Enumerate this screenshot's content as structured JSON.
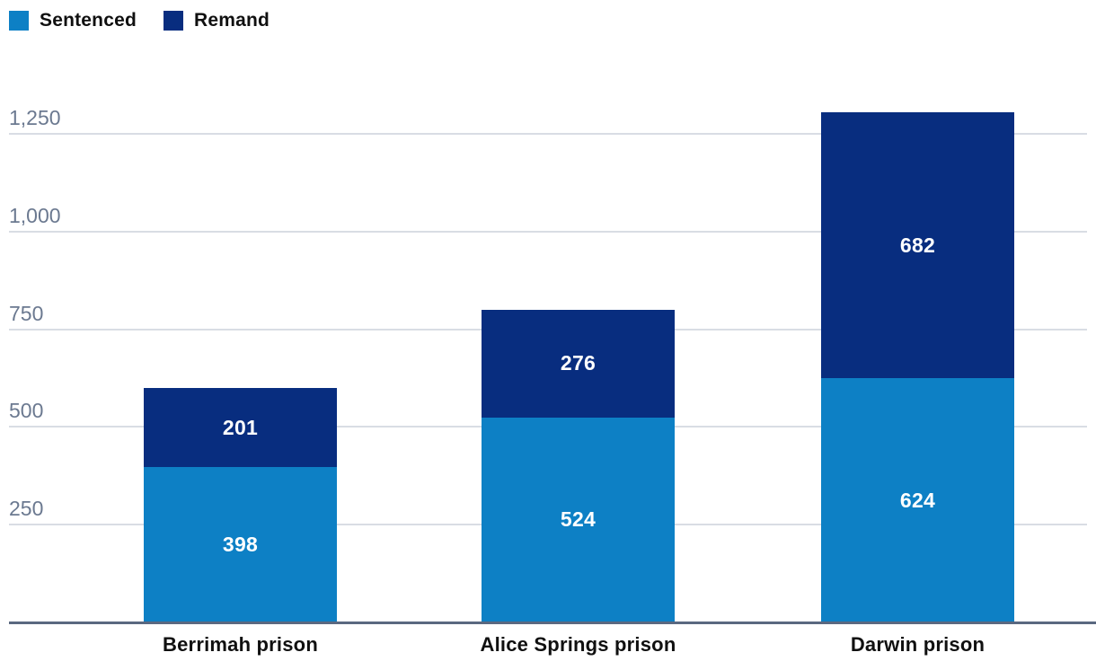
{
  "chart_data": {
    "type": "bar",
    "stacked": true,
    "title": "",
    "xlabel": "",
    "ylabel": "",
    "categories": [
      "Berrimah prison",
      "Alice Springs prison",
      "Darwin prison"
    ],
    "series": [
      {
        "name": "Sentenced",
        "color": "#0d80c5",
        "values": [
          398,
          524,
          624
        ]
      },
      {
        "name": "Remand",
        "color": "#082d7f",
        "values": [
          201,
          276,
          682
        ]
      }
    ],
    "totals": [
      599,
      800,
      1306
    ],
    "y_ticks": [
      "250",
      "500",
      "750",
      "1,000",
      "1,250"
    ],
    "y_tick_values": [
      250,
      500,
      750,
      1000,
      1250
    ],
    "ylim": [
      0,
      1365
    ],
    "grid": "horizontal",
    "gridline_color": "#d9dde4",
    "axis_line_color": "#5a6880",
    "tick_label_color": "#6b7990",
    "value_label_color": "#ffffff",
    "value_label_position": "inside-center",
    "legend_position": "top-left"
  }
}
